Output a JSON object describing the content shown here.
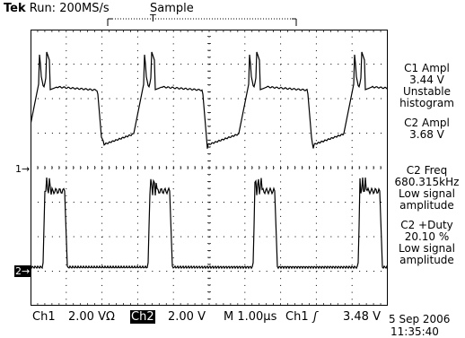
{
  "header": {
    "brand": "Tek",
    "run_status": "Run: 200MS/s",
    "acq_mode": "Sample",
    "trigger_marker": "T"
  },
  "channel_markers": {
    "ch1": "1→",
    "ch2": "2→"
  },
  "measurements": [
    {
      "lines": [
        "C1 Ampl",
        "3.44 V",
        "Unstable",
        "histogram"
      ]
    },
    {
      "lines": [
        "C2 Ampl",
        "3.68 V"
      ]
    },
    {
      "lines": [
        "C2 Freq",
        "680.315kHz",
        "Low signal",
        "amplitude"
      ]
    },
    {
      "lines": [
        "C2 +Duty",
        "20.10 %",
        "Low signal",
        "amplitude"
      ]
    }
  ],
  "footer": {
    "ch1_label": "Ch1",
    "ch1_scale": "2.00 VΩ",
    "ch2_label": "Ch2",
    "ch2_scale": "2.00 V",
    "timebase": "M 1.00µs",
    "trig_source": "Ch1",
    "trig_slope": "ʃ",
    "trig_level": "3.48 V",
    "date": "5 Sep 2006",
    "time": "11:35:40"
  },
  "colors": {
    "trace": "#000000",
    "grid": "#000000",
    "background": "#ffffff"
  },
  "icons": [
    "trigger-position-marker-icon",
    "ch1-ground-marker-icon",
    "ch2-ground-marker-icon",
    "trigger-slope-icon"
  ]
}
